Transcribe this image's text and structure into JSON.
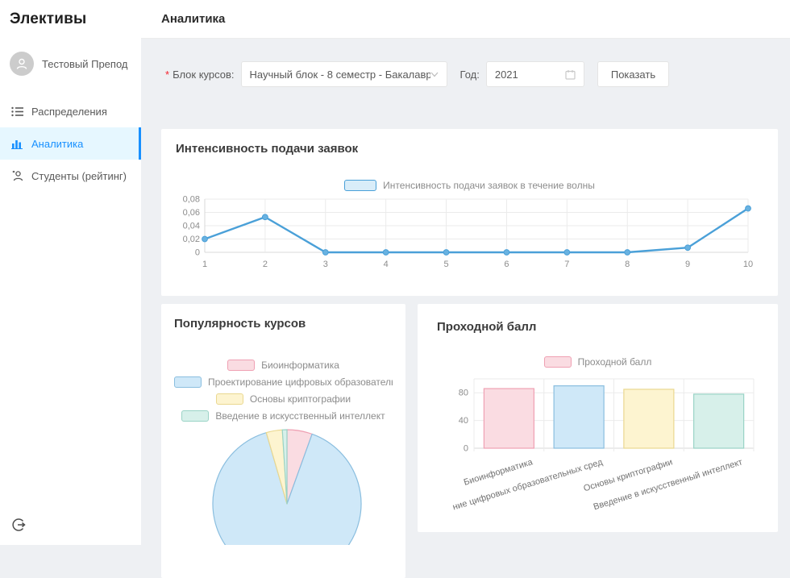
{
  "app": {
    "title": "Элективы"
  },
  "sidebar": {
    "user": {
      "name": "Тестовый Препод"
    },
    "items": [
      {
        "label": "Распределения",
        "icon": "list-icon",
        "active": false
      },
      {
        "label": "Аналитика",
        "icon": "bar-chart-icon",
        "active": true
      },
      {
        "label": "Студенты (рейтинг)",
        "icon": "students-icon",
        "active": false
      }
    ]
  },
  "header": {
    "title": "Аналитика"
  },
  "filters": {
    "required_mark": "*",
    "course_block_label": "Блок курсов:",
    "course_block_value": "Научный блок - 8 семестр - Бакалавр...",
    "year_label": "Год:",
    "year_value": "2021",
    "submit_label": "Показать"
  },
  "palette": {
    "primary": "#1890ff",
    "content_bg": "#eef0f3",
    "menu_active_bg": "#e6f7ff",
    "grid": "#ebebeb",
    "axis": "#d9d9d9",
    "tick_text": "#8c8c8c",
    "line": {
      "stroke": "#4aa0d8",
      "point_fill": "#69b2e1",
      "legend_fill": "#d9edf9"
    },
    "series": [
      {
        "fill": "#fadce2",
        "stroke": "#efa0b3"
      },
      {
        "fill": "#cfe8f8",
        "stroke": "#8abedf"
      },
      {
        "fill": "#fdf4d0",
        "stroke": "#ead890"
      },
      {
        "fill": "#d7f0ea",
        "stroke": "#9ad3c6"
      }
    ]
  },
  "chart_data": [
    {
      "type": "line",
      "title": "Интенсивность подачи заявок",
      "legend": [
        "Интенсивность подачи заявок в течение волны"
      ],
      "legend_position": "top",
      "grid": true,
      "x": [
        1,
        2,
        3,
        4,
        5,
        6,
        7,
        8,
        9,
        10
      ],
      "values": [
        0.02,
        0.053,
        0,
        0,
        0,
        0,
        0,
        0,
        0.007,
        0.066
      ],
      "ylim": [
        0,
        0.08
      ],
      "yticks": [
        [
          0,
          "0"
        ],
        [
          0.02,
          "0,02"
        ],
        [
          0.04,
          "0,04"
        ],
        [
          0.06,
          "0,06"
        ],
        [
          0.08,
          "0,08"
        ]
      ],
      "xlabel": "",
      "ylabel": ""
    },
    {
      "type": "pie",
      "title": "Популярность курсов",
      "legend_position": "top",
      "labels": [
        "Биоинформатика",
        "Проектирование цифровых образовательных ср",
        "Основы криптографии",
        "Введение в искусственный интеллект"
      ],
      "values_pct": [
        5.5,
        90,
        3.5,
        1
      ]
    },
    {
      "type": "bar",
      "title": "Проходной балл",
      "legend": [
        "Проходной балл"
      ],
      "legend_position": "top",
      "grid": true,
      "categories": [
        "Биоинформатика",
        "ние цифровых образовательных сред",
        "Основы криптографии",
        "Введение в искусственный интеллект"
      ],
      "values": [
        86,
        90,
        85,
        78
      ],
      "ylim": [
        0,
        100
      ],
      "yticks": [
        [
          0,
          "0"
        ],
        [
          40,
          "40"
        ],
        [
          80,
          "80"
        ]
      ],
      "xlabel": "",
      "ylabel": ""
    }
  ]
}
